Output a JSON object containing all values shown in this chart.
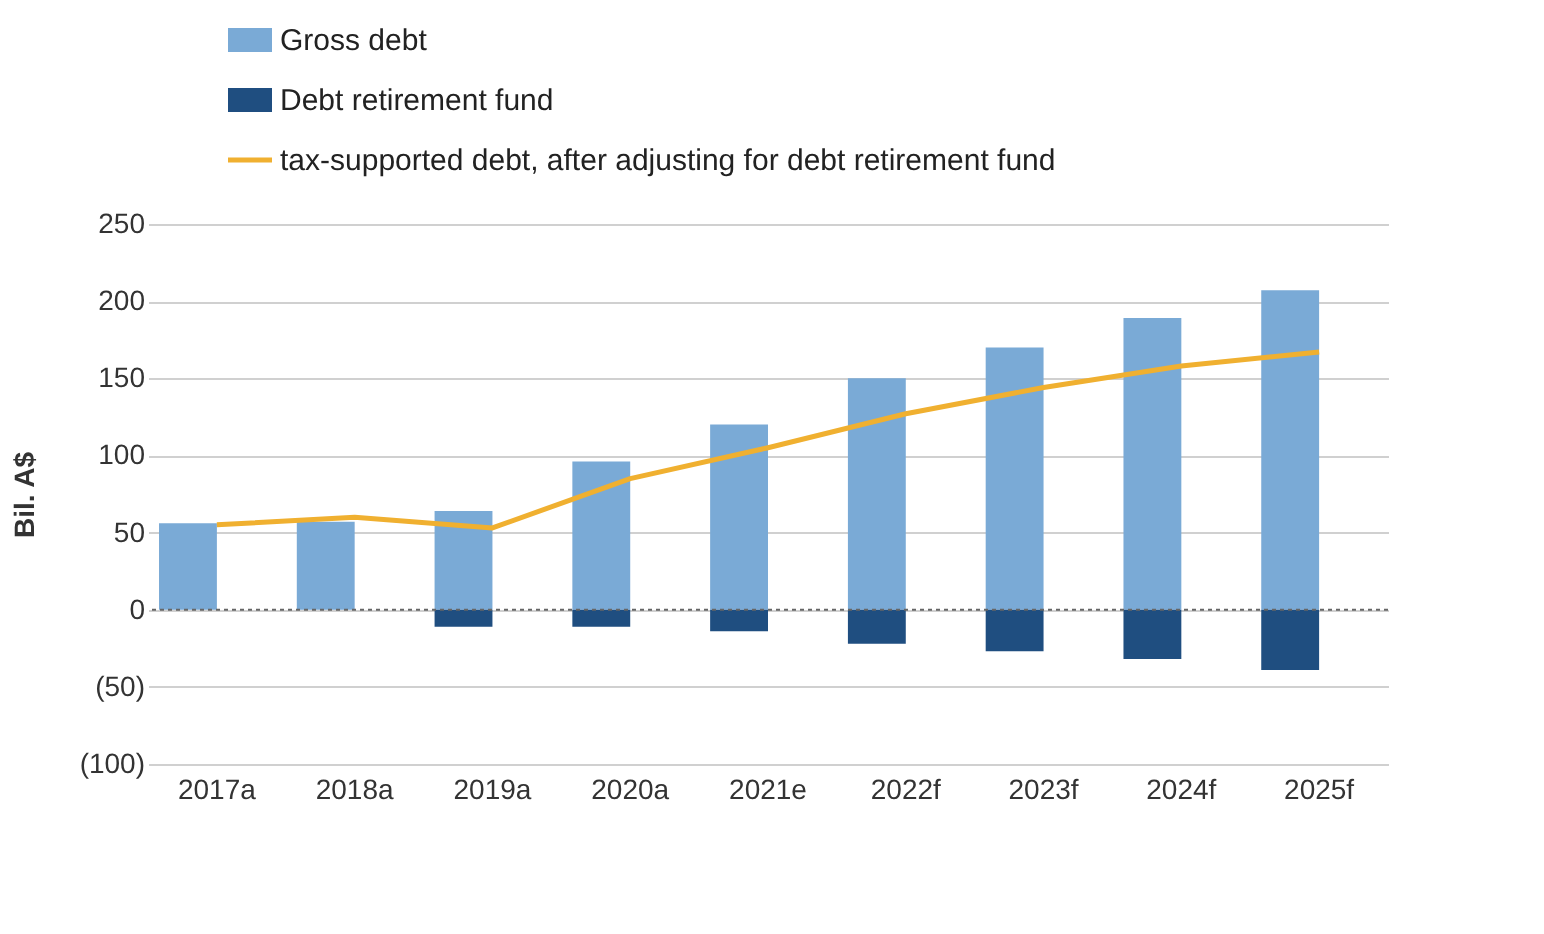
{
  "chart_data": {
    "type": "bar",
    "ylabel": "Bil. A$",
    "categories": [
      "2017a",
      "2018a",
      "2019a",
      "2020a",
      "2021e",
      "2022f",
      "2023f",
      "2024f",
      "2025f"
    ],
    "series": [
      {
        "name": "Gross debt",
        "color": "#7aaad6",
        "values": [
          56,
          57,
          64,
          96,
          120,
          150,
          170,
          189,
          207
        ]
      },
      {
        "name": "Debt retirement fund",
        "color": "#1f4e80",
        "values": [
          0,
          0,
          -11,
          -11,
          -14,
          -22,
          -27,
          -32,
          -39
        ]
      },
      {
        "name": "tax-supported debt, after adjusting for debt retirement fund",
        "type": "line",
        "color": "#f0b030",
        "values": [
          55,
          60,
          53,
          85,
          105,
          127,
          144,
          158,
          167
        ]
      }
    ],
    "stacked": true,
    "ylim": [
      -100,
      250
    ],
    "yticks": [
      {
        "value": -100,
        "label": "(100)"
      },
      {
        "value": -50,
        "label": "(50)"
      },
      0,
      50,
      100,
      150,
      200,
      250
    ],
    "ref_lines": [
      {
        "axis": "y",
        "value": 0,
        "color": "#666666",
        "line_style": "dotted"
      }
    ],
    "grid": "y",
    "legend": "top left"
  }
}
